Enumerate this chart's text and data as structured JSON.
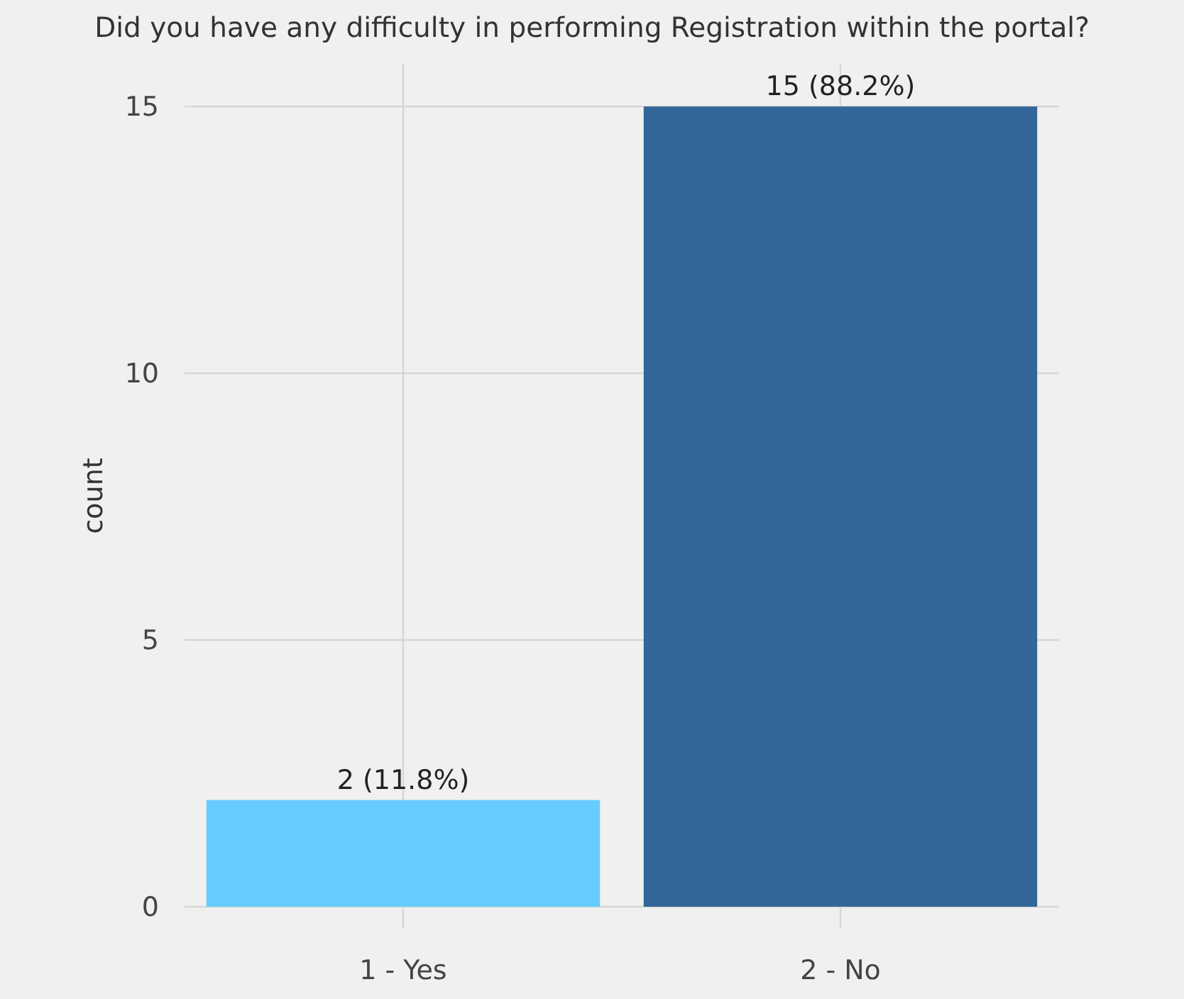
{
  "chart_data": {
    "type": "bar",
    "title": "Did you have any difficulty in performing Registration within the portal?",
    "ylabel": "count",
    "categories": [
      "1 - Yes",
      "2 - No"
    ],
    "values": [
      2,
      15
    ],
    "colors": [
      "#66ccff",
      "#336699"
    ],
    "value_labels": [
      "2 (11.8%)",
      "15 (88.2%)"
    ],
    "ylim": [
      -0.4,
      15.8
    ],
    "yticks": [
      0,
      5,
      10,
      15
    ],
    "grid": true
  }
}
